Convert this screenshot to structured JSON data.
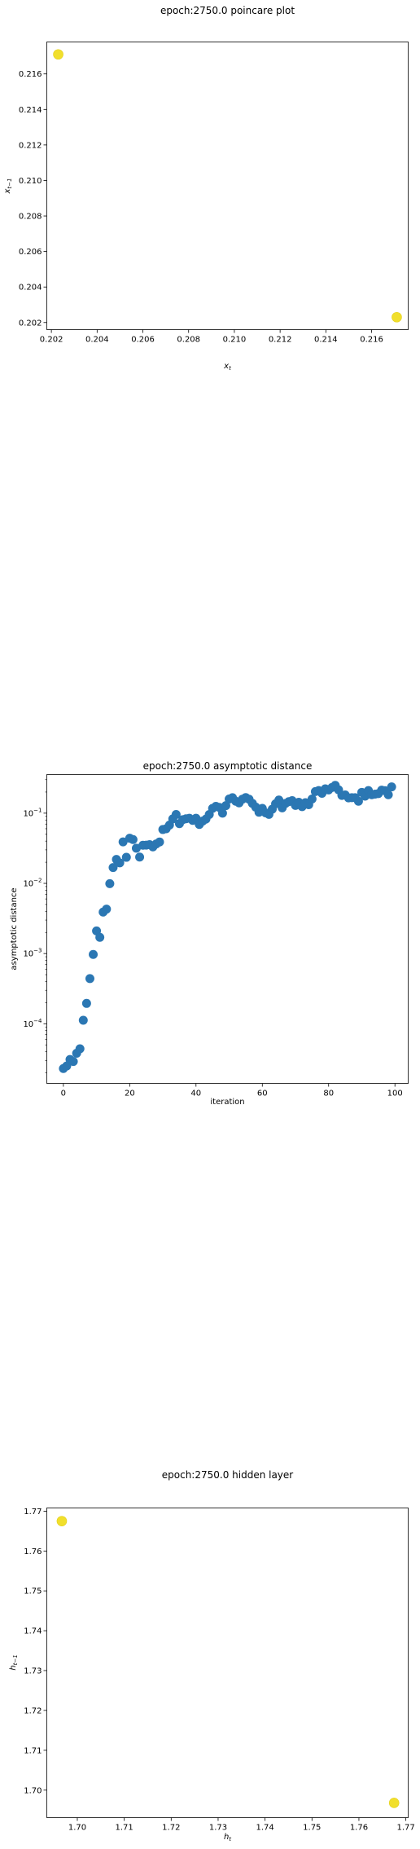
{
  "chart_data": [
    {
      "type": "scatter",
      "title": "epoch:2750.0 poincare plot",
      "xlabel": "x_t",
      "ylabel": "x_{t-1}",
      "xlim": [
        0.2018,
        0.2176
      ],
      "ylim": [
        0.2016,
        0.2178
      ],
      "xticks": [
        0.202,
        0.204,
        0.206,
        0.208,
        0.21,
        0.212,
        0.214,
        0.216
      ],
      "yticks": [
        0.202,
        0.204,
        0.206,
        0.208,
        0.21,
        0.212,
        0.214,
        0.216
      ],
      "tick_decimals": 3,
      "color": "#f1df2c",
      "points": [
        {
          "x": 0.2023,
          "y": 0.2171
        },
        {
          "x": 0.2171,
          "y": 0.2023
        }
      ]
    },
    {
      "type": "scatter",
      "title": "epoch:2750.0 asymptotic distance",
      "xlabel": "iteration",
      "ylabel": "asymptotic distance",
      "yscale": "log",
      "xlim": [
        -5,
        104
      ],
      "ylim_log10": [
        -4.85,
        -0.45
      ],
      "xticks": [
        0,
        20,
        40,
        60,
        80,
        100
      ],
      "yticks_exp": [
        -4,
        -3,
        -2,
        -1
      ],
      "color": "#2b77b3",
      "x": [
        0,
        1,
        2,
        3,
        4,
        5,
        6,
        7,
        8,
        9,
        10,
        11,
        12,
        13,
        14,
        15,
        16,
        17,
        18,
        19,
        20,
        21,
        22,
        23,
        24,
        25,
        26,
        27,
        28,
        29,
        30,
        31,
        32,
        33,
        34,
        35,
        36,
        37,
        38,
        39,
        40,
        41,
        42,
        43,
        44,
        45,
        46,
        47,
        48,
        49,
        50,
        51,
        52,
        53,
        54,
        55,
        56,
        57,
        58,
        59,
        60,
        61,
        62,
        63,
        64,
        65,
        66,
        67,
        68,
        69,
        70,
        71,
        72,
        73,
        74,
        75,
        76,
        77,
        78,
        79,
        80,
        81,
        82,
        83,
        84,
        85,
        86,
        87,
        88,
        89,
        90,
        91,
        92,
        93,
        94,
        95,
        96,
        97,
        98,
        99
      ],
      "values": [
        2.3e-05,
        2.5e-05,
        3.1e-05,
        2.9e-05,
        3.8e-05,
        4.4e-05,
        0.000112,
        0.000195,
        0.00044,
        0.00097,
        0.0021,
        0.0017,
        0.0039,
        0.0043,
        0.0099,
        0.0168,
        0.0219,
        0.0196,
        0.039,
        0.0235,
        0.0439,
        0.0421,
        0.0317,
        0.0237,
        0.0349,
        0.035,
        0.0356,
        0.0331,
        0.0365,
        0.0388,
        0.0585,
        0.06,
        0.0676,
        0.0828,
        0.0958,
        0.0709,
        0.0808,
        0.0832,
        0.0847,
        0.079,
        0.0845,
        0.069,
        0.0771,
        0.0823,
        0.0957,
        0.117,
        0.125,
        0.121,
        0.1,
        0.128,
        0.159,
        0.166,
        0.148,
        0.14,
        0.158,
        0.167,
        0.158,
        0.138,
        0.122,
        0.103,
        0.117,
        0.101,
        0.0962,
        0.114,
        0.136,
        0.154,
        0.119,
        0.138,
        0.146,
        0.151,
        0.129,
        0.143,
        0.124,
        0.141,
        0.132,
        0.159,
        0.203,
        0.21,
        0.192,
        0.222,
        0.214,
        0.232,
        0.249,
        0.215,
        0.179,
        0.182,
        0.165,
        0.166,
        0.166,
        0.148,
        0.198,
        0.175,
        0.21,
        0.183,
        0.187,
        0.19,
        0.213,
        0.209,
        0.183,
        0.237
      ]
    },
    {
      "type": "scatter",
      "title": "epoch:2750.0 hidden layer",
      "xlabel": "h_t",
      "ylabel": "h_{t-1}",
      "xlim": [
        1.6935,
        1.7705
      ],
      "ylim": [
        1.6931,
        1.7708
      ],
      "xticks": [
        1.7,
        1.71,
        1.72,
        1.73,
        1.74,
        1.75,
        1.76,
        1.77
      ],
      "yticks": [
        1.7,
        1.71,
        1.72,
        1.73,
        1.74,
        1.75,
        1.76,
        1.77
      ],
      "tick_decimals": 2,
      "color": "#f1df2c",
      "points": [
        {
          "x": 1.6967,
          "y": 1.7675
        },
        {
          "x": 1.7675,
          "y": 1.6968
        }
      ]
    }
  ]
}
